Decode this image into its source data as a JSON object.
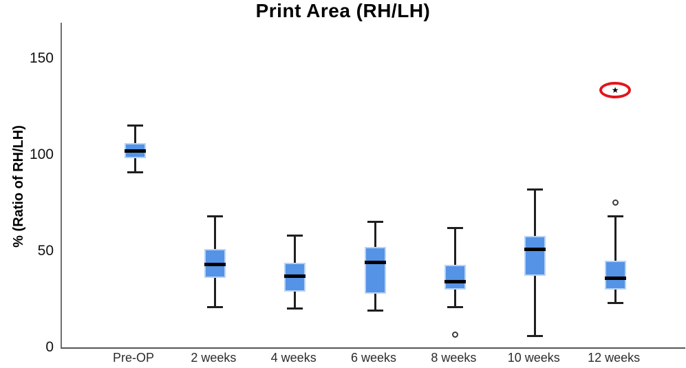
{
  "chart_data": {
    "type": "boxplot",
    "title": "Print Area (RH/LH)",
    "ylabel": "% (Ratio of RH/LH)",
    "xlabel": "",
    "categories": [
      "Pre-OP",
      "2 weeks",
      "4 weeks",
      "6 weeks",
      "8 weeks",
      "10 weeks",
      "12 weeks"
    ],
    "y_ticks": [
      0,
      50,
      100,
      150
    ],
    "ylim": [
      0,
      168.5
    ],
    "grid": false,
    "legend": "none",
    "series": [
      {
        "category": "Pre-OP",
        "whisker_low": 91,
        "q1": 98,
        "median": 102,
        "q3": 106,
        "whisker_high": 115,
        "outliers": [],
        "extremes": []
      },
      {
        "category": "2 weeks",
        "whisker_low": 21,
        "q1": 36,
        "median": 43,
        "q3": 51,
        "whisker_high": 68,
        "outliers": [],
        "extremes": []
      },
      {
        "category": "4 weeks",
        "whisker_low": 20,
        "q1": 29,
        "median": 37,
        "q3": 44,
        "whisker_high": 58,
        "outliers": [],
        "extremes": []
      },
      {
        "category": "6 weeks",
        "whisker_low": 19,
        "q1": 28,
        "median": 44,
        "q3": 52,
        "whisker_high": 65,
        "outliers": [],
        "extremes": []
      },
      {
        "category": "8 weeks",
        "whisker_low": 21,
        "q1": 30,
        "median": 34,
        "q3": 43,
        "whisker_high": 62,
        "outliers": [
          6.5
        ],
        "extremes": []
      },
      {
        "category": "10 weeks",
        "whisker_low": 6,
        "q1": 37,
        "median": 51,
        "q3": 58,
        "whisker_high": 82,
        "outliers": [],
        "extremes": []
      },
      {
        "category": "12 weeks",
        "whisker_low": 23,
        "q1": 30,
        "median": 36,
        "q3": 45,
        "whisker_high": 68,
        "outliers": [
          75
        ],
        "extremes": [
          133.5
        ]
      }
    ],
    "annotation": {
      "shape": "red-ellipse",
      "meaning": "circled extreme outlier at 12 weeks",
      "series_index": 6,
      "value": 133.5,
      "color": "#e3151c"
    },
    "extreme_marker_glyph": "★",
    "colors": {
      "box_fill": "#5493e6",
      "box_border": "#b9d3f5",
      "median": "#000000",
      "whisker": "#1f1f1f",
      "axis": "#6e6e6e",
      "outlier_stroke": "#3a3a3a",
      "annotation_red": "#e3151c"
    }
  }
}
